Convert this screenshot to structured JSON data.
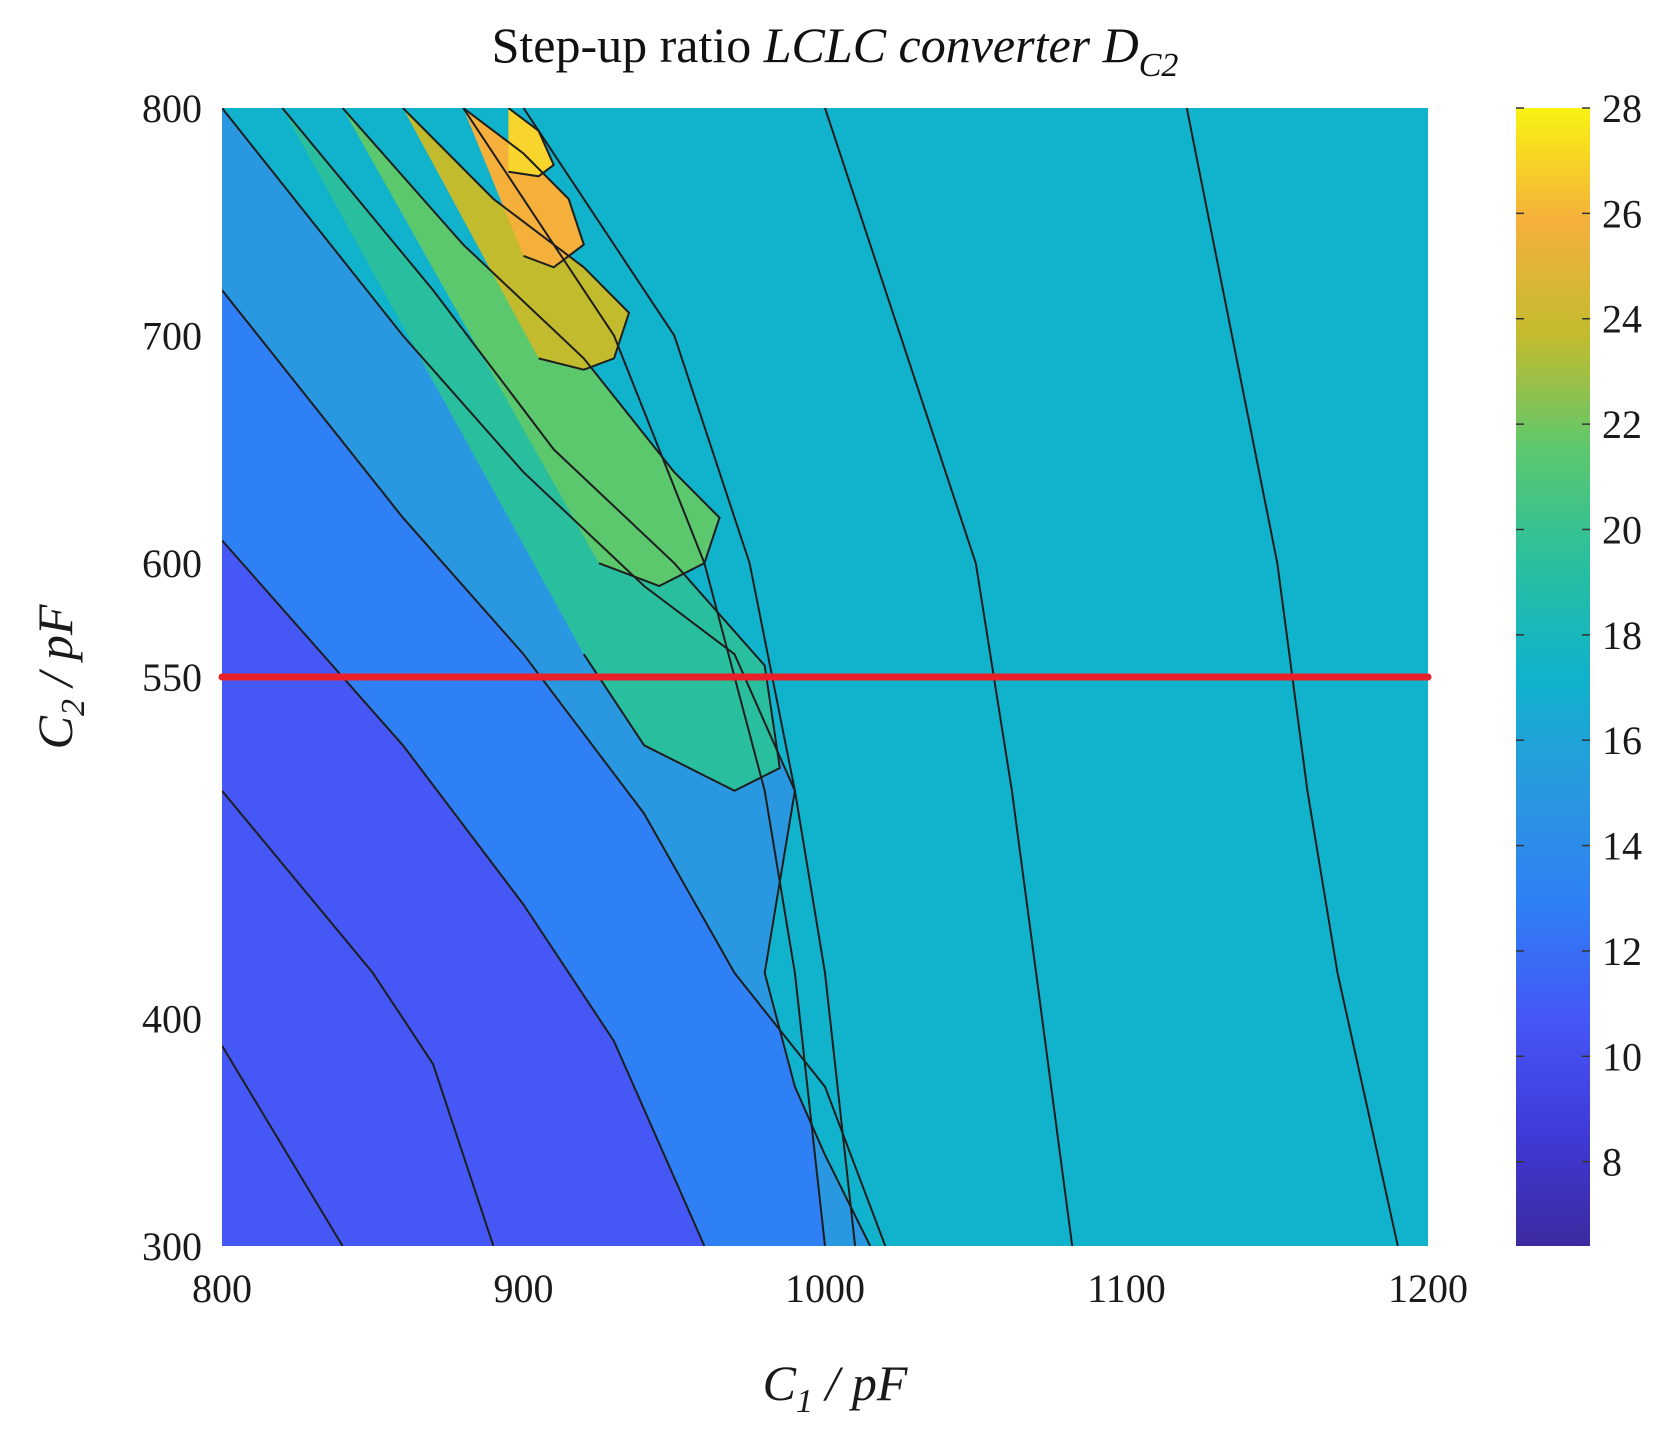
{
  "chart_data": {
    "type": "contour",
    "title": {
      "plain": "Step-up ratio ",
      "italic": "LCLC converter D",
      "subscript": "C2"
    },
    "xlabel": {
      "main": "C",
      "sub": "1",
      "rest": " / pF"
    },
    "ylabel": {
      "main": "C",
      "sub": "2",
      "rest": " / pF"
    },
    "xlim": [
      800,
      1200
    ],
    "ylim": [
      300,
      800
    ],
    "xticks": [
      800,
      900,
      1000,
      1100,
      1200
    ],
    "yticks": [
      300,
      400,
      550,
      600,
      700,
      800
    ],
    "colorbar": {
      "range": [
        6.4,
        28
      ],
      "ticks": [
        8,
        10,
        12,
        14,
        16,
        18,
        20,
        22,
        24,
        26,
        28
      ]
    },
    "levels": [
      8,
      10,
      12,
      14,
      16,
      18,
      20,
      22,
      24,
      26
    ],
    "level_colors": [
      "#3b2a9e",
      "#3f3ad8",
      "#4557f5",
      "#2f7ff5",
      "#2a98e0",
      "#10b2cc",
      "#29bf9e",
      "#5cc86e",
      "#c3bb2e",
      "#f5b03c",
      "#f7d52c"
    ],
    "highlight_line": {
      "c2_value": 550,
      "color": "#e8202a"
    },
    "contours": [
      {
        "level": 8,
        "points": [
          [
            800,
            388
          ],
          [
            840,
            300
          ]
        ]
      },
      {
        "level": 8,
        "points": [
          [
            1120,
            800
          ],
          [
            1135,
            700
          ],
          [
            1150,
            600
          ],
          [
            1160,
            500
          ],
          [
            1170,
            420
          ],
          [
            1180,
            360
          ],
          [
            1190,
            300
          ]
        ]
      },
      {
        "level": 10,
        "points": [
          [
            800,
            500
          ],
          [
            850,
            420
          ],
          [
            870,
            380
          ],
          [
            890,
            300
          ]
        ]
      },
      {
        "level": 10,
        "points": [
          [
            1000,
            800
          ],
          [
            1025,
            700
          ],
          [
            1050,
            600
          ],
          [
            1062,
            500
          ],
          [
            1070,
            420
          ],
          [
            1082,
            300
          ]
        ]
      },
      {
        "level": 12,
        "points": [
          [
            800,
            610
          ],
          [
            860,
            520
          ],
          [
            900,
            450
          ],
          [
            930,
            390
          ],
          [
            960,
            300
          ]
        ]
      },
      {
        "level": 12,
        "points": [
          [
            900,
            800
          ],
          [
            950,
            700
          ],
          [
            975,
            600
          ],
          [
            990,
            500
          ],
          [
            1000,
            420
          ],
          [
            1010,
            300
          ]
        ]
      },
      {
        "level": 14,
        "points": [
          [
            800,
            720
          ],
          [
            860,
            620
          ],
          [
            900,
            560
          ],
          [
            940,
            490
          ],
          [
            970,
            420
          ],
          [
            1000,
            370
          ],
          [
            1020,
            300
          ]
        ]
      },
      {
        "level": 14,
        "points": [
          [
            880,
            800
          ],
          [
            930,
            700
          ],
          [
            960,
            600
          ],
          [
            980,
            500
          ],
          [
            990,
            420
          ],
          [
            995,
            360
          ],
          [
            1000,
            300
          ]
        ]
      },
      {
        "level": 16,
        "points": [
          [
            800,
            800
          ],
          [
            860,
            700
          ],
          [
            900,
            640
          ],
          [
            940,
            590
          ],
          [
            970,
            560
          ],
          [
            990,
            500
          ],
          [
            980,
            420
          ],
          [
            990,
            370
          ],
          [
            1000,
            340
          ],
          [
            1015,
            300
          ]
        ]
      },
      {
        "level": 18,
        "points": [
          [
            820,
            800
          ],
          [
            870,
            720
          ],
          [
            910,
            650
          ],
          [
            950,
            600
          ],
          [
            980,
            555
          ],
          [
            985,
            510
          ],
          [
            970,
            500
          ],
          [
            940,
            520
          ],
          [
            920,
            560
          ]
        ]
      },
      {
        "level": 20,
        "points": [
          [
            840,
            800
          ],
          [
            880,
            740
          ],
          [
            920,
            690
          ],
          [
            950,
            640
          ],
          [
            965,
            620
          ],
          [
            960,
            600
          ],
          [
            945,
            590
          ],
          [
            925,
            600
          ]
        ]
      },
      {
        "level": 22,
        "points": [
          [
            860,
            800
          ],
          [
            890,
            760
          ],
          [
            920,
            730
          ],
          [
            935,
            710
          ],
          [
            930,
            690
          ],
          [
            920,
            685
          ],
          [
            905,
            690
          ]
        ]
      },
      {
        "level": 24,
        "points": [
          [
            880,
            800
          ],
          [
            900,
            780
          ],
          [
            915,
            760
          ],
          [
            920,
            740
          ],
          [
            910,
            730
          ],
          [
            900,
            735
          ]
        ]
      },
      {
        "level": 26,
        "points": [
          [
            895,
            800
          ],
          [
            905,
            790
          ],
          [
            910,
            775
          ],
          [
            905,
            770
          ],
          [
            895,
            772
          ]
        ]
      }
    ]
  }
}
